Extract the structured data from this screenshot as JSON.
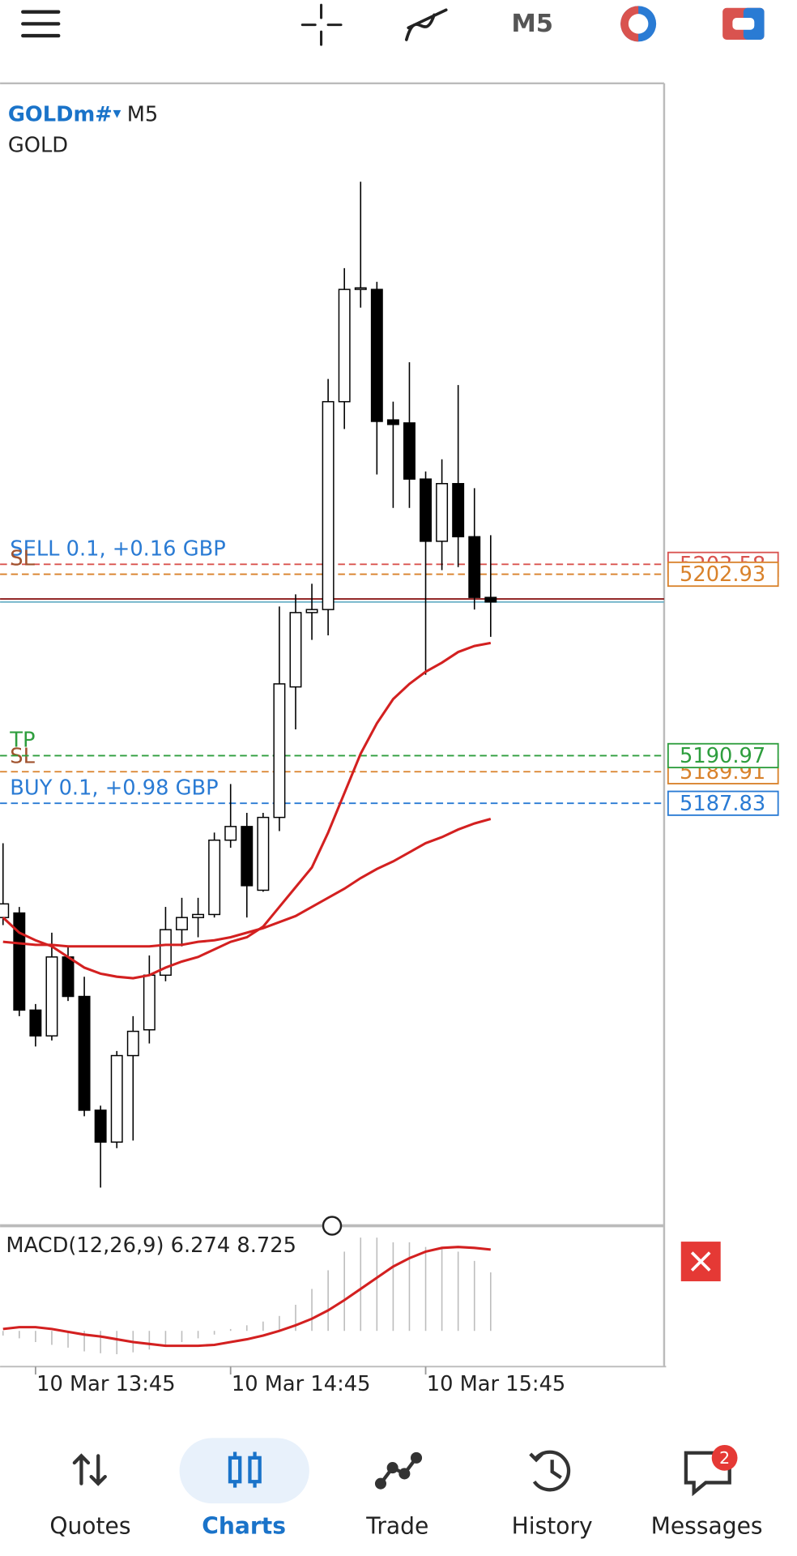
{
  "toolbar": {
    "timeframe": "M5"
  },
  "symbol": {
    "name": "GOLDm#",
    "timeframe": "M5",
    "description": "GOLD"
  },
  "chart_data": [
    {
      "type": "candlestick",
      "categories": [
        null,
        null,
        "10 Mar 13:45",
        null,
        null,
        null,
        null,
        null,
        null,
        null,
        null,
        null,
        null,
        null,
        "10 Mar 14:45",
        null,
        null,
        null,
        null,
        null,
        null,
        null,
        null,
        null,
        null,
        null,
        "10 Mar 15:45",
        null,
        null,
        null,
        null
      ],
      "open": [
        5180.3,
        5180.6,
        5174.2,
        5172.5,
        5177.7,
        5175.1,
        5167.6,
        5165.5,
        5171.2,
        5172.9,
        5176.5,
        5179.5,
        5180.3,
        5180.5,
        5185.4,
        5186.3,
        5182.1,
        5186.9,
        5195.5,
        5200.4,
        5200.6,
        5214.3,
        5221.7,
        5221.7,
        5213.1,
        5212.9,
        5209.2,
        5205.1,
        5208.9,
        5205.4,
        5201.4
      ],
      "high": [
        5185.2,
        5181.0,
        5174.6,
        5179.3,
        5178.4,
        5176.4,
        5167.9,
        5171.5,
        5173.8,
        5177.8,
        5181.0,
        5181.6,
        5181.6,
        5185.9,
        5189.1,
        5187.2,
        5187.2,
        5200.8,
        5201.6,
        5202.3,
        5215.8,
        5223.1,
        5228.8,
        5222.2,
        5214.3,
        5216.9,
        5209.7,
        5210.5,
        5215.4,
        5208.6,
        5205.5
      ],
      "low": [
        5179.8,
        5173.8,
        5171.8,
        5172.2,
        5174.8,
        5167.2,
        5162.5,
        5165.1,
        5165.6,
        5172.0,
        5176.1,
        5178.4,
        5179.0,
        5180.3,
        5184.9,
        5180.3,
        5182.0,
        5186.0,
        5192.7,
        5198.6,
        5198.9,
        5212.5,
        5220.5,
        5209.5,
        5207.3,
        5207.3,
        5196.3,
        5203.2,
        5203.4,
        5200.6,
        5198.8
      ],
      "close": [
        5181.2,
        5174.2,
        5172.5,
        5177.7,
        5175.1,
        5167.6,
        5165.5,
        5171.2,
        5172.8,
        5176.5,
        5179.5,
        5180.3,
        5180.5,
        5185.4,
        5186.3,
        5182.4,
        5186.9,
        5195.7,
        5200.4,
        5200.6,
        5214.3,
        5221.7,
        5221.8,
        5213.0,
        5212.8,
        5209.2,
        5205.1,
        5208.9,
        5205.4,
        5201.4,
        5201.1
      ],
      "up_color": "#ffffff",
      "down_color": "#000000",
      "ylim": [
        5160.05,
        5235.22
      ],
      "moving_averages": [
        {
          "color": "#d32020",
          "values": [
            5180.3,
            5179.3,
            5178.8,
            5178.4,
            5177.7,
            5177.0,
            5176.6,
            5176.4,
            5176.3,
            5176.5,
            5177.0,
            5177.4,
            5177.7,
            5178.2,
            5178.7,
            5179.0,
            5179.7,
            5181.0,
            5182.3,
            5183.6,
            5185.9,
            5188.5,
            5191.1,
            5193.1,
            5194.7,
            5195.7,
            5196.5,
            5197.1,
            5197.8,
            5198.2,
            5198.4
          ]
        },
        {
          "color": "#d32020",
          "values": [
            5178.7,
            5178.6,
            5178.5,
            5178.5,
            5178.4,
            5178.4,
            5178.4,
            5178.4,
            5178.4,
            5178.4,
            5178.5,
            5178.5,
            5178.7,
            5178.8,
            5179.0,
            5179.3,
            5179.6,
            5180.0,
            5180.4,
            5181.0,
            5181.6,
            5182.2,
            5182.9,
            5183.5,
            5184.0,
            5184.6,
            5185.2,
            5185.6,
            5186.1,
            5186.5,
            5186.8
          ]
        }
      ],
      "price_lines": [
        {
          "value": 5201.3,
          "color": "#8b1a1a"
        },
        {
          "value": 5201.1,
          "color": "#6fb3c8"
        }
      ],
      "trade_lines": [
        {
          "text": "SELL 0.1,  +0.16 GBP",
          "value": 5203.58,
          "color": "#d9534f",
          "text_color": "#2a7bd4"
        },
        {
          "text": "SL",
          "value": 5202.93,
          "color": "#d9822b",
          "text_color": "#a0522d"
        },
        {
          "text": "SL",
          "value": 5189.91,
          "color": "#d9822b",
          "text_color": "#a0522d"
        },
        {
          "text": "TP",
          "value": 5190.97,
          "color": "#2e9e3e",
          "text_color": "#2e9e3e"
        },
        {
          "text": "BUY 0.1,  +0.98 GBP",
          "value": 5187.83,
          "color": "#2a7bd4",
          "text_color": "#2a7bd4"
        }
      ]
    },
    {
      "type": "macd",
      "title": "MACD(12,26,9)",
      "histogram": [
        -0.5,
        -0.8,
        -1.2,
        -1.5,
        -1.8,
        -2.2,
        -2.4,
        -2.5,
        -2.3,
        -2.0,
        -1.6,
        -1.2,
        -0.8,
        -0.4,
        0.2,
        0.6,
        1.0,
        1.6,
        2.8,
        4.5,
        6.5,
        8.5,
        10.0,
        10.0,
        9.5,
        9.5,
        9.0,
        8.8,
        8.5,
        7.5,
        6.274
      ],
      "signal": [
        0.2,
        0.4,
        0.4,
        0.2,
        -0.1,
        -0.4,
        -0.6,
        -0.9,
        -1.2,
        -1.4,
        -1.6,
        -1.6,
        -1.6,
        -1.5,
        -1.2,
        -0.9,
        -0.5,
        0,
        0.6,
        1.3,
        2.2,
        3.3,
        4.5,
        5.7,
        6.9,
        7.8,
        8.5,
        8.9,
        9.0,
        8.9,
        8.725
      ],
      "histogram_color": "#bdbdbd",
      "signal_color": "#d32020",
      "ylim": [
        -3.83,
        10.85
      ]
    }
  ],
  "nav": {
    "items": [
      "Quotes",
      "Charts",
      "Trade",
      "History",
      "Messages"
    ],
    "badge": "2"
  }
}
